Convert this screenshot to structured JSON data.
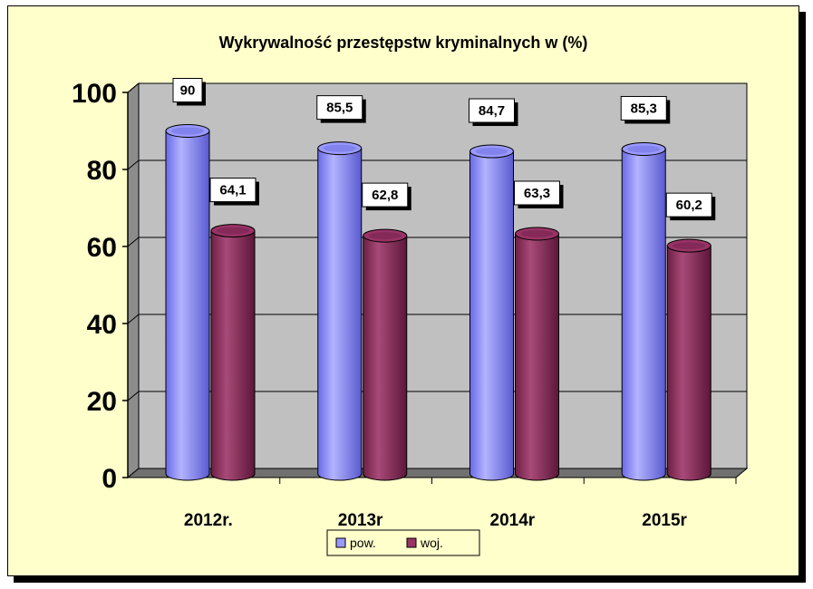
{
  "chart_data": {
    "type": "bar",
    "title": "Wykrywalność przestępstw kryminalnych w (%)",
    "categories": [
      "2012r.",
      "2013r",
      "2014r",
      "2015r"
    ],
    "series": [
      {
        "name": "pow.",
        "values": [
          90,
          85.5,
          84.7,
          85.3
        ],
        "labels": [
          "90",
          "85,5",
          "84,7",
          "85,3"
        ],
        "color": "#9999ff"
      },
      {
        "name": "woj.",
        "values": [
          64.1,
          62.8,
          63.3,
          60.2
        ],
        "labels": [
          "64,1",
          "62,8",
          "63,3",
          "60,2"
        ],
        "color": "#993366"
      }
    ],
    "y_ticks": [
      "0",
      "20",
      "40",
      "60",
      "80",
      "100"
    ],
    "ylim": [
      0,
      100
    ],
    "grid": true,
    "legend": "bottom",
    "background_color": "#ffffcc",
    "wall_color": "#c0c0c0"
  }
}
